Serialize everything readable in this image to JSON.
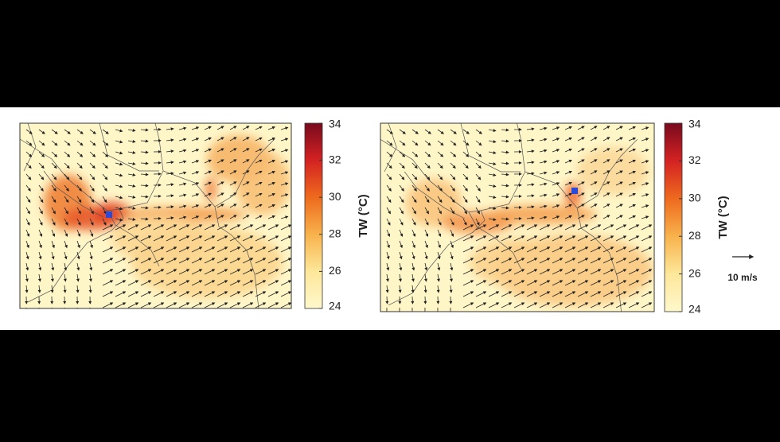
{
  "panels": [
    {
      "colorbar": {
        "label": "TW (°C)",
        "range": [
          24,
          34
        ],
        "ticks": [
          24,
          26,
          28,
          30,
          32,
          34
        ]
      }
    },
    {
      "colorbar": {
        "label": "TW (°C)",
        "range": [
          24,
          34
        ],
        "ticks": [
          24,
          26,
          28,
          30,
          32,
          34
        ]
      }
    }
  ],
  "scale_arrow": {
    "label": "10 m/s"
  }
}
